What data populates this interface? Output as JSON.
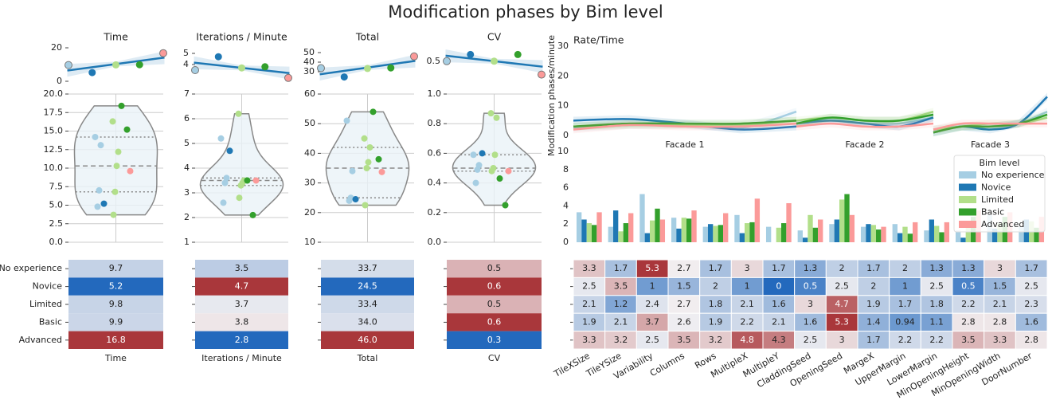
{
  "title": "Modification phases by Bim level",
  "levels": {
    "names": [
      "No experience",
      "Novice",
      "Limited",
      "Basic",
      "Advanced"
    ],
    "colors": [
      "#a6cee3",
      "#1f78b4",
      "#b2df8a",
      "#33a02c",
      "#fb9a99"
    ]
  },
  "metrics": [
    {
      "name": "Time",
      "top": {
        "ylim": [
          0,
          20
        ],
        "yticks": [
          0,
          20
        ]
      },
      "violin": {
        "ylim": [
          0,
          20
        ],
        "yticks": [
          {
            "value": 0,
            "label": "0.0"
          },
          2.5,
          {
            "value": 5,
            "label": "5.0"
          },
          7.5,
          {
            "value": 10,
            "label": "10.0"
          },
          12.5,
          {
            "value": 15,
            "label": "15.0"
          },
          17.5,
          {
            "value": 20,
            "label": "20.0"
          }
        ],
        "points": [
          [
            14.2,
            13.1,
            7.0,
            4.8
          ],
          [
            5.2
          ],
          [
            16.3,
            12.2,
            10.3,
            6.8,
            3.7
          ],
          [
            18.4,
            15.2
          ],
          [
            9.6
          ]
        ]
      },
      "heatmap": {
        "values": [
          9.7,
          5.2,
          9.8,
          9.9,
          16.8
        ]
      }
    },
    {
      "name": "Iterations / Minute",
      "top": {
        "ylim": [
          2.5,
          5.5
        ],
        "yticks": [
          4,
          5
        ]
      },
      "violin": {
        "ylim": [
          1,
          7
        ],
        "yticks": [
          1,
          2,
          3,
          4,
          5,
          6,
          7
        ],
        "points": [
          [
            5.2,
            3.6,
            3.4,
            2.6
          ],
          [
            4.7
          ],
          [
            6.2,
            3.5,
            3.4,
            3.3,
            2.8
          ],
          [
            3.5,
            2.1
          ],
          [
            3.5
          ]
        ]
      },
      "heatmap": {
        "values": [
          3.5,
          4.7,
          3.7,
          3.8,
          2.8
        ]
      }
    },
    {
      "name": "Total",
      "top": {
        "ylim": [
          20,
          55
        ],
        "yticks": [
          30,
          40,
          50
        ]
      },
      "violin": {
        "ylim": [
          10,
          60
        ],
        "yticks": [
          10,
          20,
          30,
          40,
          50,
          60
        ],
        "points": [
          [
            51,
            34,
            25,
            24
          ],
          [
            24.5
          ],
          [
            45,
            42,
            37,
            35,
            22.5
          ],
          [
            54,
            38
          ],
          [
            33.7
          ]
        ]
      },
      "heatmap": {
        "values": [
          33.7,
          24.5,
          33.4,
          34,
          46
        ],
        "value_labels": [
          "33.7",
          "24.5",
          "33.4",
          "34.0",
          "46.0"
        ]
      }
    },
    {
      "name": "CV",
      "top": {
        "ylim": [
          0.2,
          0.7
        ],
        "yticks": [
          0.5
        ]
      },
      "violin": {
        "ylim": [
          0,
          1
        ],
        "yticks": [
          {
            "value": 0,
            "label": "0.0"
          },
          0.2,
          0.4,
          0.6,
          0.8,
          {
            "value": 1,
            "label": "1.0"
          }
        ],
        "points": [
          [
            0.59,
            0.52,
            0.49,
            0.4
          ],
          [
            0.6
          ],
          [
            0.87,
            0.84,
            0.59,
            0.5,
            0.48
          ],
          [
            0.43,
            0.25
          ],
          [
            0.48
          ]
        ]
      },
      "heatmap": {
        "values": [
          0.5,
          0.6,
          0.5,
          0.6,
          0.3
        ]
      }
    }
  ],
  "rate_time": {
    "title": "Rate/Time",
    "ylabel": "Modification phases/minute",
    "ylim": [
      0,
      30
    ],
    "yticks": [
      0,
      10,
      20,
      30
    ],
    "facets": [
      {
        "label": "Facade 1",
        "series": [
          [
            2.5,
            3.5,
            3.5,
            2.5,
            8
          ],
          [
            5,
            5.5,
            4,
            2,
            3
          ],
          [
            3,
            3.5,
            3.5,
            3.5,
            5
          ],
          [
            3,
            4,
            4,
            4,
            5
          ],
          [
            2,
            3.5,
            3,
            3,
            4
          ]
        ]
      },
      {
        "label": "Facade 2",
        "series": [
          [
            4,
            5,
            4,
            4,
            6
          ],
          [
            4,
            5,
            4,
            3,
            6
          ],
          [
            5,
            6,
            5,
            5,
            8
          ],
          [
            4,
            6,
            5,
            5,
            7
          ],
          [
            3,
            4,
            3,
            3,
            4
          ]
        ]
      },
      {
        "label": "Facade 3",
        "series": [
          [
            2,
            3,
            3,
            4,
            8
          ],
          [
            1,
            3,
            2,
            4,
            13
          ],
          [
            2,
            3,
            4,
            4,
            6
          ],
          [
            1,
            3,
            3,
            4,
            7
          ],
          [
            2,
            4,
            4,
            4,
            4
          ]
        ]
      }
    ]
  },
  "modifications": {
    "legend_title": "Bim level",
    "ylim": [
      0,
      10
    ],
    "yticks": [
      0,
      2,
      4,
      6,
      8,
      10
    ],
    "categories": [
      "TileXSize",
      "TileYSize",
      "Variability",
      "Columns",
      "Rows",
      "MultipleX",
      "MultipleY",
      "CladdingSeed",
      "OpeningSeed",
      "MargeX",
      "UpperMargin",
      "LowerMargin",
      "MinOpeningHeight",
      "MinOpeningWidth",
      "DoorNumber"
    ],
    "series": [
      [
        3.3,
        1.7,
        5.3,
        2.7,
        1.7,
        3,
        1.7,
        1.3,
        2,
        1.7,
        2,
        1.3,
        1.3,
        3,
        1.7
      ],
      [
        2.5,
        3.5,
        1,
        1.5,
        2,
        1,
        0,
        0.5,
        2.5,
        2,
        1,
        2.5,
        0.5,
        1.5,
        2.5
      ],
      [
        2.1,
        1.2,
        2.4,
        2.7,
        1.8,
        2.1,
        1.6,
        3,
        4.7,
        1.9,
        1.7,
        1.8,
        2.2,
        2.1,
        2.3
      ],
      [
        1.9,
        2.1,
        3.7,
        2.6,
        1.9,
        2.2,
        2.1,
        1.6,
        5.3,
        1.4,
        0.94,
        1.1,
        2.8,
        2.8,
        1.6
      ],
      [
        3.3,
        3.2,
        2.5,
        3.5,
        3.2,
        4.8,
        4.3,
        2.5,
        3,
        1.7,
        2.2,
        2.2,
        3.5,
        3.3,
        2.8
      ]
    ]
  }
}
